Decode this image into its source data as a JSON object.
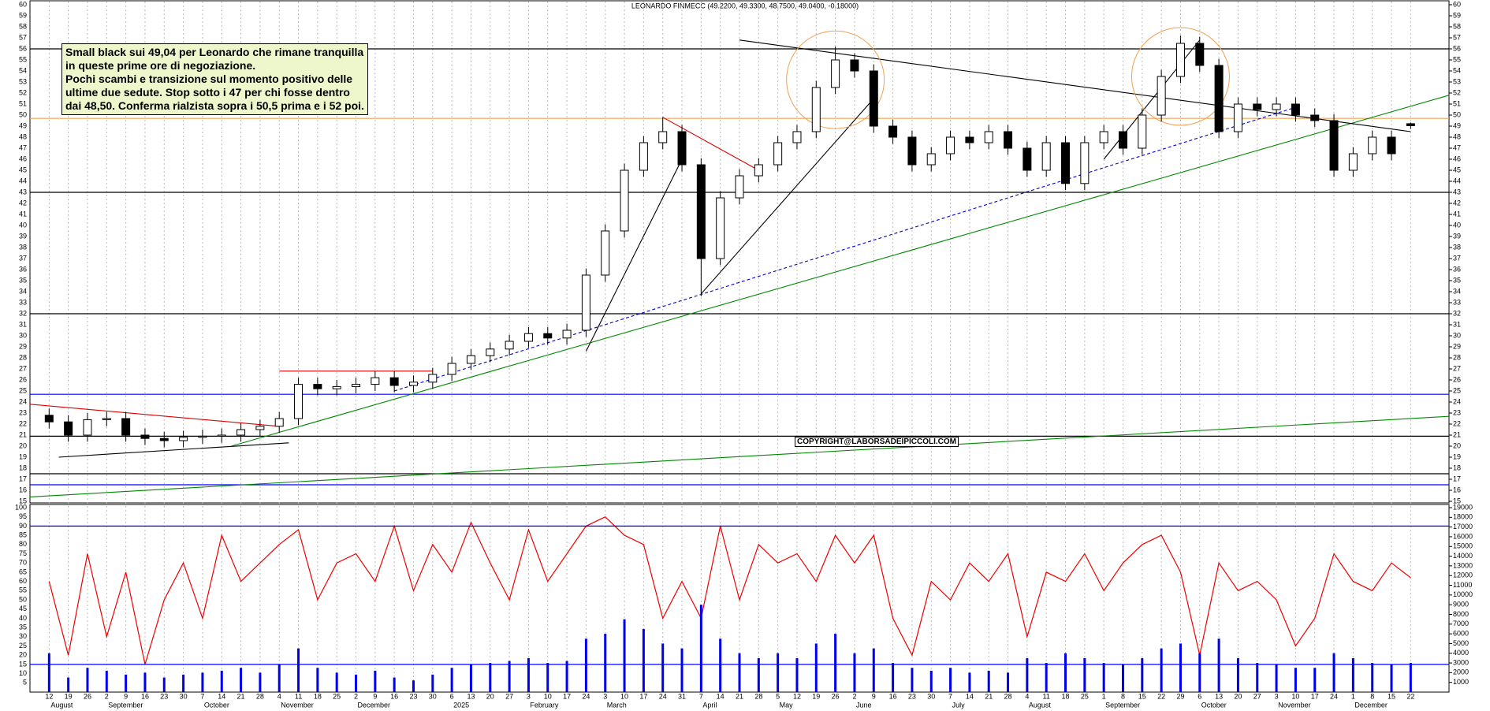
{
  "chart_data": [
    {
      "type": "candlestick",
      "title": "LEONARDO FINMECC (49.2200, 49.3300, 48.7500, 49.0400, -0.18000)",
      "note": [
        "Small black sui 49,04 per Leonardo che rimane tranquilla",
        "in queste prime ore di negoziazione.",
        "Pochi scambi e transizione sul momento positivo delle",
        "ultime due sedute. Stop sotto i 47 per chi fosse dentro",
        "dai 48,50. Conferma rialzista sopra i 50,5 prima e i 52 poi."
      ],
      "copyright": "COPYRIGHT@LABORSADEIPICCOLI.COM",
      "categories": [
        "12",
        "19",
        "26",
        "2",
        "9",
        "16",
        "23",
        "30",
        "7",
        "14",
        "21",
        "28",
        "4",
        "11",
        "18",
        "25",
        "2",
        "9",
        "16",
        "23",
        "30",
        "6",
        "13",
        "20",
        "27",
        "3",
        "10",
        "17",
        "24",
        "3",
        "10",
        "17",
        "24",
        "31",
        "7",
        "14",
        "21",
        "28",
        "5",
        "12",
        "19",
        "26",
        "2",
        "9",
        "16",
        "23",
        "30",
        "7",
        "14",
        "21",
        "28",
        "4",
        "11",
        "18",
        "25",
        "1",
        "8",
        "15",
        "22",
        "29",
        "6",
        "13",
        "20",
        "27",
        "3",
        "10",
        "17",
        "24",
        "1",
        "8",
        "15",
        "22"
      ],
      "open": [
        22.8,
        22.2,
        21.0,
        22.4,
        22.5,
        21.0,
        20.7,
        20.5,
        20.8,
        20.9,
        21.0,
        21.5,
        21.8,
        22.5,
        25.6,
        25.2,
        25.4,
        25.6,
        26.2,
        25.5,
        25.8,
        26.5,
        27.5,
        28.2,
        28.8,
        29.5,
        30.2,
        29.8,
        30.5,
        35.5,
        39.5,
        45.0,
        47.5,
        48.5,
        45.5,
        37.0,
        42.5,
        44.5,
        45.5,
        47.5,
        48.5,
        52.5,
        55.0,
        54.0,
        49.0,
        48.0,
        45.5,
        46.5,
        48.0,
        47.5,
        48.5,
        47.0,
        45.0,
        47.5,
        43.8,
        47.5,
        48.5,
        47.0,
        50.0,
        53.5,
        56.5,
        54.5,
        48.5,
        51.0,
        50.5,
        51.0,
        50.0,
        49.5,
        45.0,
        46.5,
        48.0,
        49.22
      ],
      "high": [
        23.4,
        22.8,
        23.0,
        23.1,
        23.1,
        21.6,
        21.3,
        21.4,
        21.5,
        21.6,
        22.1,
        22.4,
        23.1,
        26.2,
        26.2,
        26.0,
        26.2,
        26.8,
        26.8,
        26.4,
        27.1,
        28.1,
        28.8,
        29.4,
        30.1,
        30.8,
        30.8,
        31.1,
        36.1,
        40.1,
        45.6,
        48.1,
        49.8,
        49.1,
        46.1,
        43.1,
        45.1,
        46.1,
        48.1,
        49.1,
        53.1,
        56.2,
        55.6,
        54.6,
        49.6,
        48.6,
        47.1,
        48.6,
        48.6,
        49.1,
        49.1,
        47.6,
        48.1,
        48.1,
        48.1,
        49.1,
        49.1,
        50.6,
        54.1,
        57.2,
        57.1,
        55.1,
        51.6,
        51.6,
        51.6,
        51.6,
        50.6,
        50.1,
        47.1,
        48.6,
        48.6,
        49.33
      ],
      "low": [
        21.6,
        20.4,
        20.4,
        21.8,
        20.4,
        20.1,
        19.9,
        19.9,
        20.2,
        20.3,
        20.4,
        20.9,
        21.2,
        21.9,
        24.6,
        24.6,
        24.8,
        25.0,
        24.9,
        24.9,
        25.2,
        25.9,
        26.9,
        27.6,
        28.2,
        28.9,
        29.2,
        29.2,
        29.9,
        34.9,
        38.9,
        44.4,
        46.9,
        44.9,
        33.6,
        36.4,
        41.9,
        43.9,
        44.9,
        46.9,
        47.9,
        51.9,
        53.4,
        48.4,
        47.4,
        44.9,
        44.9,
        45.9,
        46.9,
        46.9,
        46.4,
        44.4,
        44.4,
        43.2,
        43.2,
        46.9,
        46.4,
        46.4,
        49.4,
        52.9,
        53.9,
        47.9,
        47.9,
        49.9,
        49.9,
        49.4,
        48.9,
        44.4,
        44.4,
        45.9,
        45.9,
        48.75
      ],
      "close": [
        22.2,
        21.0,
        22.4,
        22.5,
        21.0,
        20.7,
        20.5,
        20.8,
        20.9,
        21.0,
        21.5,
        21.8,
        22.5,
        25.6,
        25.2,
        25.4,
        25.6,
        26.2,
        25.5,
        25.8,
        26.5,
        27.5,
        28.2,
        28.8,
        29.5,
        30.2,
        29.8,
        30.5,
        35.5,
        39.5,
        45.0,
        47.5,
        48.5,
        45.5,
        37.0,
        42.5,
        44.5,
        45.5,
        47.5,
        48.5,
        52.5,
        55.0,
        54.0,
        49.0,
        48.0,
        45.5,
        46.5,
        48.0,
        47.5,
        48.5,
        47.0,
        45.0,
        47.5,
        43.8,
        47.5,
        48.5,
        47.0,
        50.0,
        53.5,
        56.5,
        54.5,
        48.5,
        51.0,
        50.5,
        51.0,
        50.0,
        49.5,
        45.0,
        46.5,
        48.0,
        46.5,
        49.04
      ],
      "xlim": [
        -1,
        73
      ],
      "xticks": [
        {
          "value": 0,
          "label": "August"
        },
        {
          "value": 3,
          "label": "September"
        },
        {
          "value": 8,
          "label": "October"
        },
        {
          "value": 12,
          "label": "November"
        },
        {
          "value": 16,
          "label": "December"
        },
        {
          "value": 21,
          "label": "2025"
        },
        {
          "value": 25,
          "label": "February"
        },
        {
          "value": 29,
          "label": "March"
        },
        {
          "value": 34,
          "label": "April"
        },
        {
          "value": 38,
          "label": "May"
        },
        {
          "value": 42,
          "label": "June"
        },
        {
          "value": 47,
          "label": "July"
        },
        {
          "value": 51,
          "label": "August"
        },
        {
          "value": 55,
          "label": "September"
        },
        {
          "value": 60,
          "label": "October"
        },
        {
          "value": 64,
          "label": "November"
        },
        {
          "value": 68,
          "label": "December"
        }
      ],
      "ylim": [
        15,
        60
      ],
      "yticks": [
        15,
        16,
        17,
        18,
        19,
        20,
        21,
        22,
        23,
        24,
        25,
        26,
        27,
        28,
        29,
        30,
        31,
        32,
        33,
        34,
        35,
        36,
        37,
        38,
        39,
        40,
        41,
        42,
        43,
        44,
        45,
        46,
        47,
        48,
        49,
        50,
        51,
        52,
        53,
        54,
        55,
        56,
        57,
        58,
        59,
        60
      ],
      "grid": true,
      "levels": [
        {
          "value": 56,
          "color": "#000000"
        },
        {
          "value": 49.7,
          "color": "#f0a050"
        },
        {
          "value": 43,
          "color": "#000000"
        },
        {
          "value": 32,
          "color": "#000000"
        },
        {
          "value": 24.7,
          "color": "#0000ff"
        },
        {
          "value": 20.9,
          "color": "#000000"
        },
        {
          "value": 17.5,
          "color": "#000000"
        },
        {
          "value": 16.5,
          "color": "#0000ff"
        }
      ],
      "trendlines": [
        {
          "color": "#008800",
          "points": [
            [
              9.5,
              20
            ],
            [
              73,
              51.8
            ]
          ]
        },
        {
          "color": "#008800",
          "points": [
            [
              -1,
              15.4
            ],
            [
              73,
              22.7
            ]
          ]
        },
        {
          "color": "#0000cc",
          "dashed": true,
          "points": [
            [
              18,
              25
            ],
            [
              65,
              50.7
            ]
          ]
        },
        {
          "color": "#000000",
          "points": [
            [
              36,
              56.8
            ],
            [
              71,
              48.5
            ]
          ]
        },
        {
          "color": "#dd0000",
          "points": [
            [
              32,
              49.8
            ],
            [
              37,
              45
            ]
          ]
        },
        {
          "color": "#dd0000",
          "points": [
            [
              -1,
              23.8
            ],
            [
              12,
              21.8
            ]
          ]
        },
        {
          "color": "#000000",
          "points": [
            [
              0.5,
              19
            ],
            [
              12.5,
              20.3
            ]
          ]
        },
        {
          "color": "#000000",
          "points": [
            [
              28,
              28.6
            ],
            [
              33,
              46
            ]
          ]
        },
        {
          "color": "#000000",
          "points": [
            [
              34,
              33.8
            ],
            [
              43,
              51.5
            ]
          ]
        },
        {
          "color": "#000000",
          "points": [
            [
              55,
              46
            ],
            [
              60,
              56.8
            ]
          ]
        },
        {
          "color": "#dd0000",
          "points": [
            [
              12,
              26.8
            ],
            [
              20,
              26.8
            ]
          ]
        }
      ],
      "highlights": {
        "color": "#f0a050",
        "points": [
          [
            41,
            53.2
          ],
          [
            59,
            53.5
          ]
        ]
      }
    },
    {
      "type": "line-bar",
      "xlim": [
        -1,
        73
      ],
      "ylim": [
        0,
        100
      ],
      "yticks": [
        5,
        10,
        15,
        20,
        25,
        30,
        35,
        40,
        45,
        50,
        55,
        60,
        65,
        70,
        75,
        80,
        85,
        90,
        95,
        100
      ],
      "y2lim": [
        0,
        19000
      ],
      "y2ticks": [
        1000,
        2000,
        3000,
        4000,
        5000,
        6000,
        7000,
        8000,
        9000,
        10000,
        11000,
        12000,
        13000,
        14000,
        15000,
        16000,
        17000,
        18000,
        19000
      ],
      "levels": [
        {
          "value": 90,
          "color": "#0000ff"
        },
        {
          "value": 15,
          "color": "#0000ff"
        }
      ],
      "series": [
        {
          "kind": "line",
          "color": "#ee0000",
          "values": [
            60,
            20,
            75,
            30,
            65,
            15,
            50,
            70,
            40,
            85,
            60,
            70,
            80,
            88,
            50,
            70,
            75,
            60,
            90,
            55,
            80,
            65,
            92,
            70,
            50,
            88,
            60,
            75,
            90,
            95,
            85,
            80,
            40,
            60,
            40,
            90,
            50,
            80,
            70,
            75,
            60,
            85,
            70,
            85,
            40,
            20,
            60,
            50,
            70,
            60,
            75,
            30,
            65,
            60,
            75,
            55,
            70,
            80,
            85,
            65,
            20,
            70,
            55,
            60,
            50,
            25,
            40,
            75,
            60,
            55,
            70,
            62
          ]
        },
        {
          "kind": "bar",
          "axis": "y2",
          "color": "#0000ee",
          "values": [
            4000,
            1500,
            2500,
            2200,
            1800,
            2000,
            1500,
            1800,
            2000,
            2200,
            2500,
            2000,
            2800,
            4500,
            2500,
            2000,
            1800,
            2200,
            1500,
            1200,
            1800,
            2500,
            2800,
            3000,
            3200,
            3500,
            3000,
            3200,
            5500,
            6000,
            7500,
            6500,
            5000,
            4500,
            9000,
            5500,
            4000,
            3500,
            4000,
            3500,
            5000,
            6000,
            4000,
            4500,
            3000,
            2500,
            2200,
            2500,
            2000,
            2200,
            2000,
            3500,
            3000,
            4000,
            3500,
            3000,
            2800,
            3500,
            4500,
            5000,
            4000,
            5500,
            3500,
            3000,
            2800,
            2500,
            2500,
            4000,
            3500,
            3000,
            2800,
            3000
          ]
        }
      ]
    }
  ]
}
